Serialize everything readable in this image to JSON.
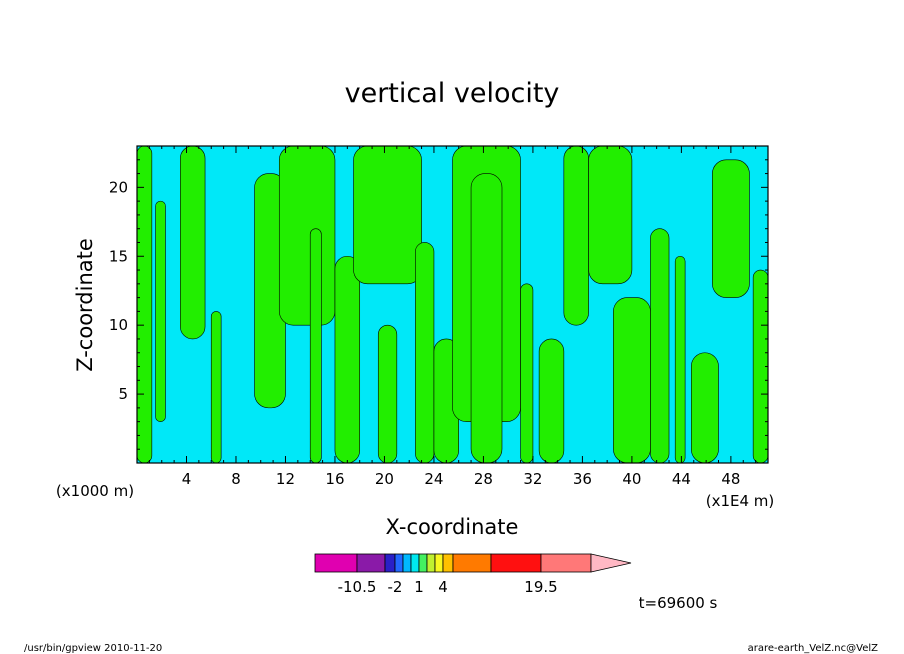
{
  "chart_data": {
    "type": "heatmap",
    "title": "vertical velocity",
    "xlabel": "X-coordinate",
    "ylabel": "Z-coordinate",
    "x_unit_left": "(x1000 m)",
    "x_unit_right": "(x1E4 m)",
    "xlim": [
      0,
      51
    ],
    "ylim": [
      0,
      23
    ],
    "x_ticks": [
      "4",
      "8",
      "12",
      "16",
      "20",
      "24",
      "28",
      "32",
      "36",
      "40",
      "44",
      "48"
    ],
    "y_ticks": [
      "5",
      "10",
      "15",
      "20"
    ],
    "colorbar": {
      "colors": [
        "#e000b0",
        "#8a1aa8",
        "#2a20c8",
        "#2268ff",
        "#00b8ff",
        "#00e8f0",
        "#44f060",
        "#c0f030",
        "#f8f820",
        "#ffc000",
        "#ff7a00",
        "#ff1010",
        "#ff7878"
      ],
      "extend_color": "#ffb8c4",
      "labels": [
        "-10.5",
        "-2",
        "1",
        "4",
        "19.5"
      ]
    },
    "time_label": "t=69600 s",
    "fill_colors": {
      "low": "#00e8f8",
      "high": "#22ee00"
    }
  },
  "footer": {
    "left": "/usr/bin/gpview   2010-11-20",
    "right": "arare-earth_VelZ.nc@VelZ"
  }
}
